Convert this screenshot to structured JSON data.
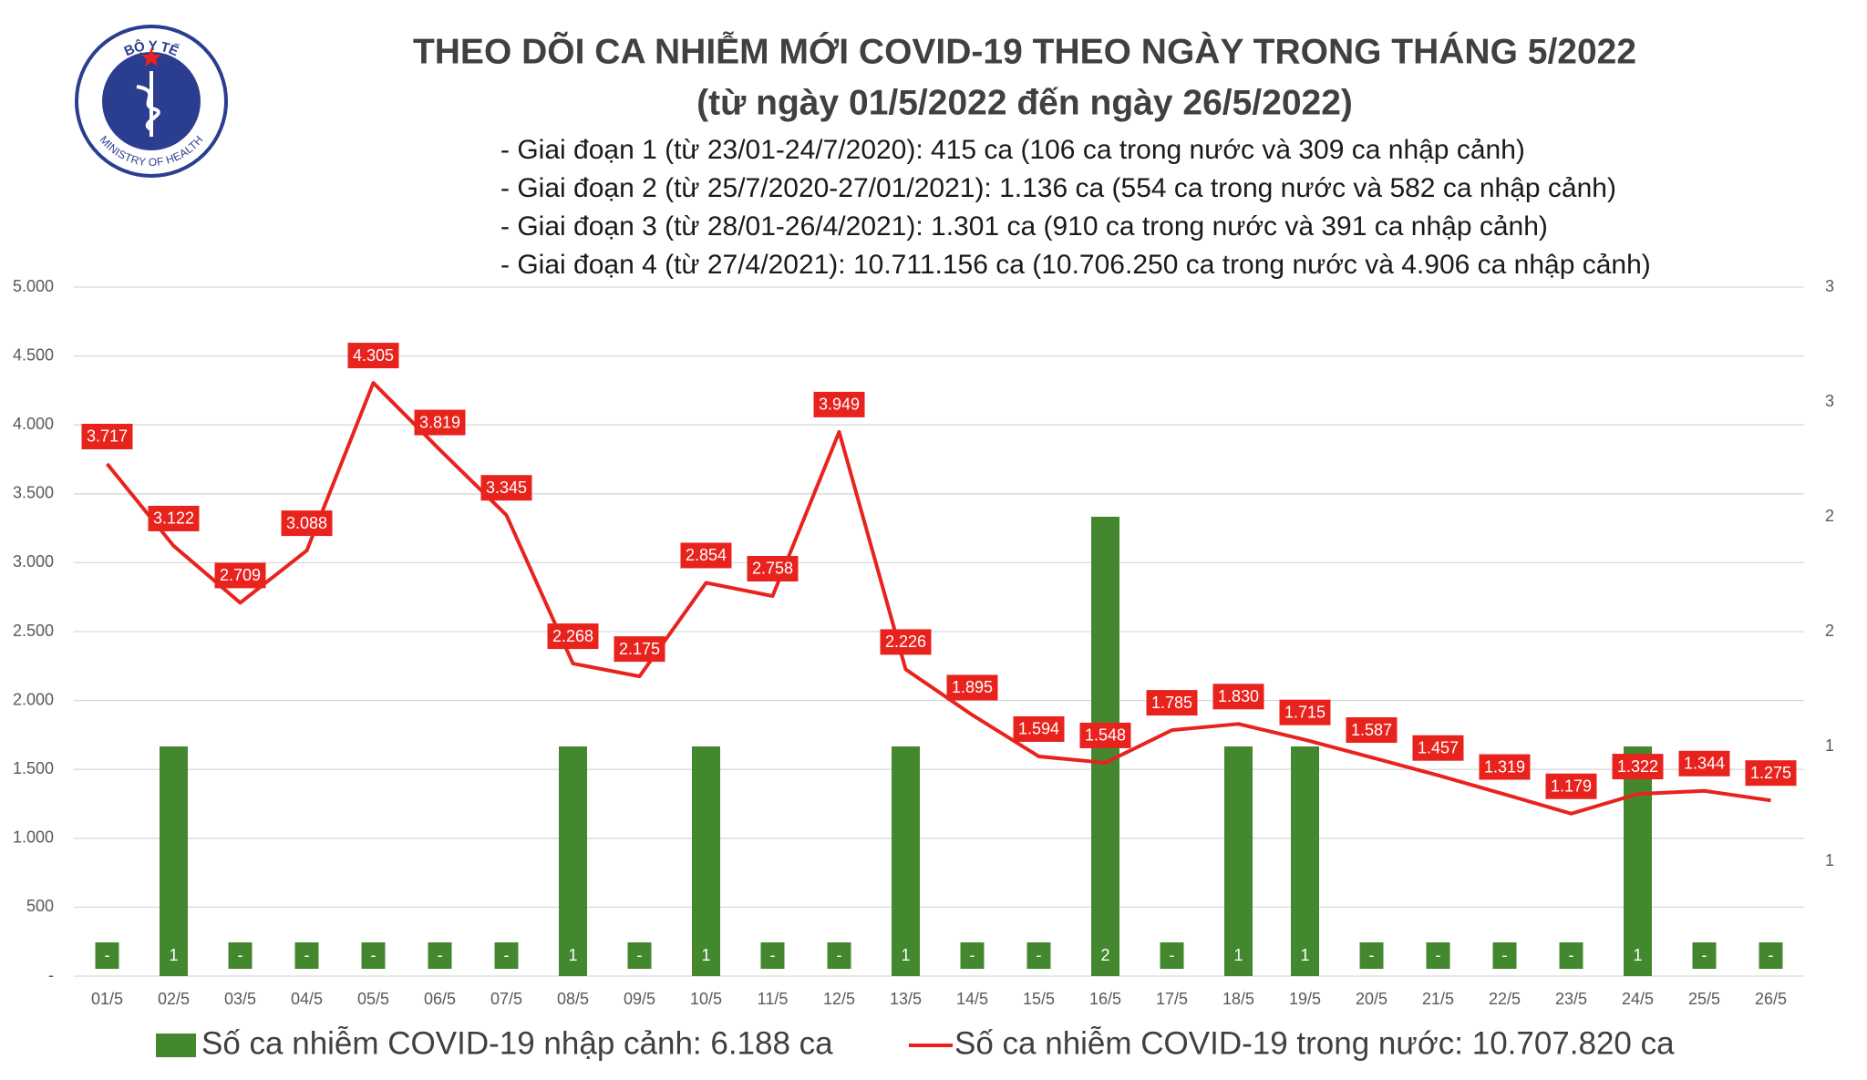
{
  "logo": {
    "top_text": "BỘ Y TẾ",
    "bottom_text": "MINISTRY OF HEALTH"
  },
  "chart_data": {
    "type": "combo",
    "title": "THEO DÕI CA NHIỄM MỚI COVID-19 THEO NGÀY TRONG THÁNG 5/2022",
    "subtitle": "(từ ngày 01/5/2022 đến ngày 26/5/2022)",
    "annotations": [
      "- Giai đoạn 1 (từ 23/01-24/7/2020): 415 ca (106 ca trong nước và 309 ca nhập cảnh)",
      "- Giai đoạn 2 (từ 25/7/2020-27/01/2021): 1.136 ca (554 ca trong nước và 582 ca nhập cảnh)",
      "- Giai đoạn 3 (từ 28/01-26/4/2021): 1.301 ca (910 ca trong nước và 391 ca nhập cảnh)",
      "- Giai đoạn 4 (từ 27/4/2021): 10.711.156 ca (10.706.250 ca trong nước và 4.906 ca nhập cảnh)"
    ],
    "categories": [
      "01/5",
      "02/5",
      "03/5",
      "04/5",
      "05/5",
      "06/5",
      "07/5",
      "08/5",
      "09/5",
      "10/5",
      "11/5",
      "12/5",
      "13/5",
      "14/5",
      "15/5",
      "16/5",
      "17/5",
      "18/5",
      "19/5",
      "20/5",
      "21/5",
      "22/5",
      "23/5",
      "24/5",
      "25/5",
      "26/5"
    ],
    "series": [
      {
        "name": "Số ca nhiễm COVID-19 nhập cảnh: 6.188 ca",
        "type": "bar",
        "axis": "y2",
        "color": "#43882f",
        "values": [
          0,
          1,
          0,
          0,
          0,
          0,
          0,
          1,
          0,
          1,
          0,
          0,
          1,
          0,
          0,
          2,
          0,
          1,
          1,
          0,
          0,
          0,
          0,
          1,
          0,
          0
        ],
        "value_labels": [
          "-",
          "1",
          "-",
          "-",
          "-",
          "-",
          "-",
          "1",
          "-",
          "1",
          "-",
          "-",
          "1",
          "-",
          "-",
          "2",
          "-",
          "1",
          "1",
          "-",
          "-",
          "-",
          "-",
          "1",
          "-",
          "-"
        ]
      },
      {
        "name": "Số ca nhiễm COVID-19 trong nước: 10.707.820 ca",
        "type": "line",
        "color": "#e8231e",
        "values": [
          3717,
          3122,
          2709,
          3088,
          4305,
          3819,
          3345,
          2268,
          2175,
          2854,
          2758,
          3949,
          2226,
          1895,
          1594,
          1548,
          1785,
          1830,
          1715,
          1587,
          1457,
          1319,
          1179,
          1322,
          1344,
          1275
        ],
        "value_labels": [
          "3.717",
          "3.122",
          "2.709",
          "3.088",
          "4.305",
          "3.819",
          "3.345",
          "2.268",
          "2.175",
          "2.854",
          "2.758",
          "3.949",
          "2.226",
          "1.895",
          "1.594",
          "1.548",
          "1.785",
          "1.830",
          "1.715",
          "1.587",
          "1.457",
          "1.319",
          "1.179",
          "1.322",
          "1.344",
          "1.275"
        ]
      }
    ],
    "ylim": [
      0,
      5000
    ],
    "yticks": [
      {
        "value": 0,
        "label": "-"
      },
      500,
      {
        "value": 1000,
        "label": "1.000"
      },
      {
        "value": 1500,
        "label": "1.500"
      },
      {
        "value": 2000,
        "label": "2.000"
      },
      {
        "value": 2500,
        "label": "2.500"
      },
      {
        "value": 3000,
        "label": "3.000"
      },
      {
        "value": 3500,
        "label": "3.500"
      },
      {
        "value": 4000,
        "label": "4.000"
      },
      {
        "value": 4500,
        "label": "4.500"
      },
      {
        "value": 5000,
        "label": "5.000"
      }
    ],
    "y2lim": [
      0,
      3
    ],
    "y2ticks": [
      {
        "value": 0.5,
        "label": "1"
      },
      1,
      {
        "value": 1.5,
        "label": "2"
      },
      2,
      {
        "value": 2.5,
        "label": "3"
      },
      3
    ],
    "grid": true,
    "legend": "bottom"
  }
}
